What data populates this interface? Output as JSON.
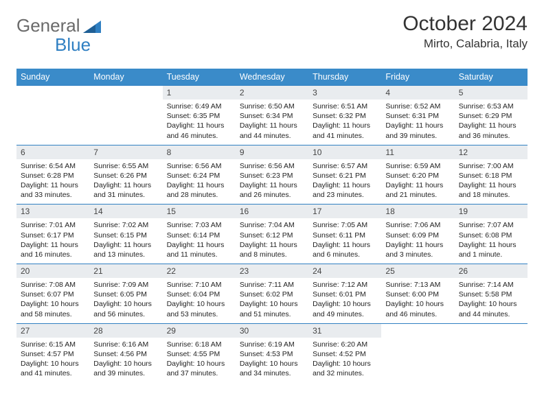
{
  "logo": {
    "general": "General",
    "blue": "Blue"
  },
  "title": "October 2024",
  "location": "Mirto, Calabria, Italy",
  "colors": {
    "header_bg": "#3a8bc9",
    "header_text": "#ffffff",
    "border": "#2f7fc2",
    "daynum_bg": "#e9ecef",
    "logo_gray": "#6a6a6a",
    "logo_blue": "#2f7fc2",
    "body_text": "#222222"
  },
  "weekdays": [
    "Sunday",
    "Monday",
    "Tuesday",
    "Wednesday",
    "Thursday",
    "Friday",
    "Saturday"
  ],
  "weeks": [
    [
      {
        "n": "",
        "sr": "",
        "ss": "",
        "dl": ""
      },
      {
        "n": "",
        "sr": "",
        "ss": "",
        "dl": ""
      },
      {
        "n": "1",
        "sr": "Sunrise: 6:49 AM",
        "ss": "Sunset: 6:35 PM",
        "dl": "Daylight: 11 hours and 46 minutes."
      },
      {
        "n": "2",
        "sr": "Sunrise: 6:50 AM",
        "ss": "Sunset: 6:34 PM",
        "dl": "Daylight: 11 hours and 44 minutes."
      },
      {
        "n": "3",
        "sr": "Sunrise: 6:51 AM",
        "ss": "Sunset: 6:32 PM",
        "dl": "Daylight: 11 hours and 41 minutes."
      },
      {
        "n": "4",
        "sr": "Sunrise: 6:52 AM",
        "ss": "Sunset: 6:31 PM",
        "dl": "Daylight: 11 hours and 39 minutes."
      },
      {
        "n": "5",
        "sr": "Sunrise: 6:53 AM",
        "ss": "Sunset: 6:29 PM",
        "dl": "Daylight: 11 hours and 36 minutes."
      }
    ],
    [
      {
        "n": "6",
        "sr": "Sunrise: 6:54 AM",
        "ss": "Sunset: 6:28 PM",
        "dl": "Daylight: 11 hours and 33 minutes."
      },
      {
        "n": "7",
        "sr": "Sunrise: 6:55 AM",
        "ss": "Sunset: 6:26 PM",
        "dl": "Daylight: 11 hours and 31 minutes."
      },
      {
        "n": "8",
        "sr": "Sunrise: 6:56 AM",
        "ss": "Sunset: 6:24 PM",
        "dl": "Daylight: 11 hours and 28 minutes."
      },
      {
        "n": "9",
        "sr": "Sunrise: 6:56 AM",
        "ss": "Sunset: 6:23 PM",
        "dl": "Daylight: 11 hours and 26 minutes."
      },
      {
        "n": "10",
        "sr": "Sunrise: 6:57 AM",
        "ss": "Sunset: 6:21 PM",
        "dl": "Daylight: 11 hours and 23 minutes."
      },
      {
        "n": "11",
        "sr": "Sunrise: 6:59 AM",
        "ss": "Sunset: 6:20 PM",
        "dl": "Daylight: 11 hours and 21 minutes."
      },
      {
        "n": "12",
        "sr": "Sunrise: 7:00 AM",
        "ss": "Sunset: 6:18 PM",
        "dl": "Daylight: 11 hours and 18 minutes."
      }
    ],
    [
      {
        "n": "13",
        "sr": "Sunrise: 7:01 AM",
        "ss": "Sunset: 6:17 PM",
        "dl": "Daylight: 11 hours and 16 minutes."
      },
      {
        "n": "14",
        "sr": "Sunrise: 7:02 AM",
        "ss": "Sunset: 6:15 PM",
        "dl": "Daylight: 11 hours and 13 minutes."
      },
      {
        "n": "15",
        "sr": "Sunrise: 7:03 AM",
        "ss": "Sunset: 6:14 PM",
        "dl": "Daylight: 11 hours and 11 minutes."
      },
      {
        "n": "16",
        "sr": "Sunrise: 7:04 AM",
        "ss": "Sunset: 6:12 PM",
        "dl": "Daylight: 11 hours and 8 minutes."
      },
      {
        "n": "17",
        "sr": "Sunrise: 7:05 AM",
        "ss": "Sunset: 6:11 PM",
        "dl": "Daylight: 11 hours and 6 minutes."
      },
      {
        "n": "18",
        "sr": "Sunrise: 7:06 AM",
        "ss": "Sunset: 6:09 PM",
        "dl": "Daylight: 11 hours and 3 minutes."
      },
      {
        "n": "19",
        "sr": "Sunrise: 7:07 AM",
        "ss": "Sunset: 6:08 PM",
        "dl": "Daylight: 11 hours and 1 minute."
      }
    ],
    [
      {
        "n": "20",
        "sr": "Sunrise: 7:08 AM",
        "ss": "Sunset: 6:07 PM",
        "dl": "Daylight: 10 hours and 58 minutes."
      },
      {
        "n": "21",
        "sr": "Sunrise: 7:09 AM",
        "ss": "Sunset: 6:05 PM",
        "dl": "Daylight: 10 hours and 56 minutes."
      },
      {
        "n": "22",
        "sr": "Sunrise: 7:10 AM",
        "ss": "Sunset: 6:04 PM",
        "dl": "Daylight: 10 hours and 53 minutes."
      },
      {
        "n": "23",
        "sr": "Sunrise: 7:11 AM",
        "ss": "Sunset: 6:02 PM",
        "dl": "Daylight: 10 hours and 51 minutes."
      },
      {
        "n": "24",
        "sr": "Sunrise: 7:12 AM",
        "ss": "Sunset: 6:01 PM",
        "dl": "Daylight: 10 hours and 49 minutes."
      },
      {
        "n": "25",
        "sr": "Sunrise: 7:13 AM",
        "ss": "Sunset: 6:00 PM",
        "dl": "Daylight: 10 hours and 46 minutes."
      },
      {
        "n": "26",
        "sr": "Sunrise: 7:14 AM",
        "ss": "Sunset: 5:58 PM",
        "dl": "Daylight: 10 hours and 44 minutes."
      }
    ],
    [
      {
        "n": "27",
        "sr": "Sunrise: 6:15 AM",
        "ss": "Sunset: 4:57 PM",
        "dl": "Daylight: 10 hours and 41 minutes."
      },
      {
        "n": "28",
        "sr": "Sunrise: 6:16 AM",
        "ss": "Sunset: 4:56 PM",
        "dl": "Daylight: 10 hours and 39 minutes."
      },
      {
        "n": "29",
        "sr": "Sunrise: 6:18 AM",
        "ss": "Sunset: 4:55 PM",
        "dl": "Daylight: 10 hours and 37 minutes."
      },
      {
        "n": "30",
        "sr": "Sunrise: 6:19 AM",
        "ss": "Sunset: 4:53 PM",
        "dl": "Daylight: 10 hours and 34 minutes."
      },
      {
        "n": "31",
        "sr": "Sunrise: 6:20 AM",
        "ss": "Sunset: 4:52 PM",
        "dl": "Daylight: 10 hours and 32 minutes."
      },
      {
        "n": "",
        "sr": "",
        "ss": "",
        "dl": ""
      },
      {
        "n": "",
        "sr": "",
        "ss": "",
        "dl": ""
      }
    ]
  ]
}
